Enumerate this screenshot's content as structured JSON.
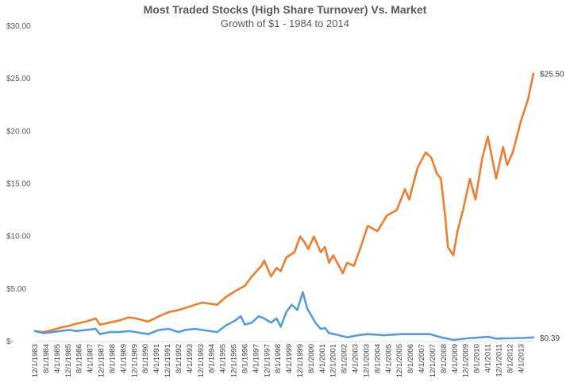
{
  "chart_data": {
    "type": "line",
    "title": "Most Traded Stocks (High Share Turnover) Vs. Market",
    "subtitle": "Growth of $1 - 1984 to 2014",
    "xlabel": "",
    "ylabel": "",
    "ylim": [
      0,
      30
    ],
    "y_ticks": [
      {
        "value": 0,
        "label": "$-"
      },
      {
        "value": 5,
        "label": "$5.00"
      },
      {
        "value": 10,
        "label": "$10.00"
      },
      {
        "value": 15,
        "label": "$15.00"
      },
      {
        "value": 20,
        "label": "$20.00"
      },
      {
        "value": 25,
        "label": "$25.00"
      },
      {
        "value": 30,
        "label": "$30.00"
      }
    ],
    "x_range": [
      "1983-12-01",
      "2014-01-01"
    ],
    "x_tick_labels": [
      "12/1/1983",
      "8/1/1984",
      "4/1/1985",
      "12/1/1985",
      "8/1/1986",
      "4/1/1987",
      "12/1/1987",
      "8/1/1988",
      "4/1/1989",
      "12/1/1989",
      "8/1/1990",
      "4/1/1991",
      "12/1/1991",
      "8/1/1992",
      "4/1/1993",
      "12/1/1993",
      "8/1/1994",
      "4/1/1995",
      "12/1/1995",
      "8/1/1996",
      "4/1/1997",
      "12/1/1997",
      "8/1/1998",
      "4/1/1999",
      "12/1/1999",
      "8/1/2000",
      "4/1/2001",
      "12/1/2001",
      "8/1/2002",
      "4/1/2003",
      "12/1/2003",
      "8/1/2004",
      "4/1/2005",
      "12/1/2005",
      "8/1/2006",
      "4/1/2007",
      "12/1/2007",
      "8/1/2008",
      "4/1/2009",
      "12/1/2009",
      "8/1/2010",
      "4/1/2011",
      "12/1/2011",
      "8/1/2012",
      "4/1/2013"
    ],
    "grid": false,
    "legend": "none",
    "series": [
      {
        "color": "#ED7D31",
        "end_label": "$25.50",
        "points": [
          [
            "1983-12-01",
            1.0
          ],
          [
            "1984-06-01",
            0.9
          ],
          [
            "1985-01-01",
            1.1
          ],
          [
            "1985-06-01",
            1.3
          ],
          [
            "1986-01-01",
            1.5
          ],
          [
            "1986-06-01",
            1.7
          ],
          [
            "1987-01-01",
            1.9
          ],
          [
            "1987-08-01",
            2.2
          ],
          [
            "1987-11-01",
            1.6
          ],
          [
            "1988-06-01",
            1.8
          ],
          [
            "1989-01-01",
            2.0
          ],
          [
            "1989-08-01",
            2.3
          ],
          [
            "1990-01-01",
            2.2
          ],
          [
            "1990-10-01",
            1.9
          ],
          [
            "1991-06-01",
            2.4
          ],
          [
            "1992-01-01",
            2.8
          ],
          [
            "1992-08-01",
            3.0
          ],
          [
            "1993-01-01",
            3.2
          ],
          [
            "1993-08-01",
            3.5
          ],
          [
            "1994-01-01",
            3.7
          ],
          [
            "1994-12-01",
            3.5
          ],
          [
            "1995-06-01",
            4.2
          ],
          [
            "1996-01-01",
            4.8
          ],
          [
            "1996-08-01",
            5.3
          ],
          [
            "1997-01-01",
            6.2
          ],
          [
            "1997-08-01",
            7.2
          ],
          [
            "1997-10-01",
            7.7
          ],
          [
            "1998-03-01",
            6.2
          ],
          [
            "1998-07-01",
            7.0
          ],
          [
            "1998-10-01",
            6.7
          ],
          [
            "1999-02-01",
            8.0
          ],
          [
            "1999-08-01",
            8.5
          ],
          [
            "1999-12-01",
            10.0
          ],
          [
            "2000-03-01",
            9.5
          ],
          [
            "2000-06-01",
            8.8
          ],
          [
            "2000-10-01",
            10.0
          ],
          [
            "2001-03-01",
            8.5
          ],
          [
            "2001-06-01",
            9.0
          ],
          [
            "2001-09-01",
            7.5
          ],
          [
            "2001-12-01",
            8.2
          ],
          [
            "2002-07-01",
            6.5
          ],
          [
            "2002-10-01",
            7.5
          ],
          [
            "2003-03-01",
            7.2
          ],
          [
            "2003-08-01",
            9.0
          ],
          [
            "2004-01-01",
            11.0
          ],
          [
            "2004-08-01",
            10.5
          ],
          [
            "2005-03-01",
            12.0
          ],
          [
            "2005-10-01",
            12.5
          ],
          [
            "2006-04-01",
            14.5
          ],
          [
            "2006-07-01",
            13.5
          ],
          [
            "2007-01-01",
            16.5
          ],
          [
            "2007-07-01",
            18.0
          ],
          [
            "2007-11-01",
            17.5
          ],
          [
            "2008-03-01",
            16.0
          ],
          [
            "2008-06-01",
            15.5
          ],
          [
            "2008-09-01",
            12.0
          ],
          [
            "2008-11-01",
            9.0
          ],
          [
            "2009-03-01",
            8.2
          ],
          [
            "2009-06-01",
            10.5
          ],
          [
            "2009-10-01",
            12.5
          ],
          [
            "2010-03-01",
            15.5
          ],
          [
            "2010-07-01",
            13.5
          ],
          [
            "2010-12-01",
            17.5
          ],
          [
            "2011-04-01",
            19.5
          ],
          [
            "2011-10-01",
            15.5
          ],
          [
            "2012-03-01",
            18.5
          ],
          [
            "2012-06-01",
            16.8
          ],
          [
            "2012-10-01",
            18.0
          ],
          [
            "2013-04-01",
            21.0
          ],
          [
            "2013-09-01",
            23.0
          ],
          [
            "2014-01-01",
            25.5
          ]
        ]
      },
      {
        "color": "#5B9BD5",
        "end_label": "$0.39",
        "points": [
          [
            "1983-12-01",
            1.0
          ],
          [
            "1984-06-01",
            0.8
          ],
          [
            "1985-01-01",
            0.9
          ],
          [
            "1985-06-01",
            1.0
          ],
          [
            "1986-01-01",
            1.1
          ],
          [
            "1986-06-01",
            1.0
          ],
          [
            "1987-01-01",
            1.1
          ],
          [
            "1987-08-01",
            1.2
          ],
          [
            "1987-11-01",
            0.7
          ],
          [
            "1988-06-01",
            0.9
          ],
          [
            "1989-01-01",
            0.9
          ],
          [
            "1989-08-01",
            1.0
          ],
          [
            "1990-01-01",
            0.9
          ],
          [
            "1990-10-01",
            0.7
          ],
          [
            "1991-06-01",
            1.1
          ],
          [
            "1992-01-01",
            1.2
          ],
          [
            "1992-08-01",
            0.9
          ],
          [
            "1993-01-01",
            1.1
          ],
          [
            "1993-08-01",
            1.2
          ],
          [
            "1994-01-01",
            1.1
          ],
          [
            "1994-12-01",
            0.9
          ],
          [
            "1995-06-01",
            1.5
          ],
          [
            "1996-01-01",
            2.0
          ],
          [
            "1996-05-01",
            2.4
          ],
          [
            "1996-08-01",
            1.6
          ],
          [
            "1997-01-01",
            1.8
          ],
          [
            "1997-06-01",
            2.4
          ],
          [
            "1997-10-01",
            2.2
          ],
          [
            "1998-03-01",
            1.8
          ],
          [
            "1998-07-01",
            2.2
          ],
          [
            "1998-10-01",
            1.4
          ],
          [
            "1999-02-01",
            2.8
          ],
          [
            "1999-06-01",
            3.5
          ],
          [
            "1999-10-01",
            3.0
          ],
          [
            "2000-02-01",
            4.7
          ],
          [
            "2000-05-01",
            3.2
          ],
          [
            "2000-08-01",
            2.5
          ],
          [
            "2000-11-01",
            1.8
          ],
          [
            "2001-03-01",
            1.2
          ],
          [
            "2001-06-01",
            1.3
          ],
          [
            "2001-09-01",
            0.8
          ],
          [
            "2002-01-01",
            0.7
          ],
          [
            "2002-07-01",
            0.5
          ],
          [
            "2002-10-01",
            0.4
          ],
          [
            "2003-06-01",
            0.6
          ],
          [
            "2004-01-01",
            0.7
          ],
          [
            "2005-01-01",
            0.6
          ],
          [
            "2006-01-01",
            0.7
          ],
          [
            "2007-01-01",
            0.7
          ],
          [
            "2007-10-01",
            0.7
          ],
          [
            "2008-06-01",
            0.4
          ],
          [
            "2009-03-01",
            0.15
          ],
          [
            "2010-01-01",
            0.3
          ],
          [
            "2010-06-01",
            0.35
          ],
          [
            "2011-04-01",
            0.45
          ],
          [
            "2011-10-01",
            0.28
          ],
          [
            "2012-06-01",
            0.3
          ],
          [
            "2013-06-01",
            0.34
          ],
          [
            "2014-01-01",
            0.39
          ]
        ]
      }
    ]
  }
}
